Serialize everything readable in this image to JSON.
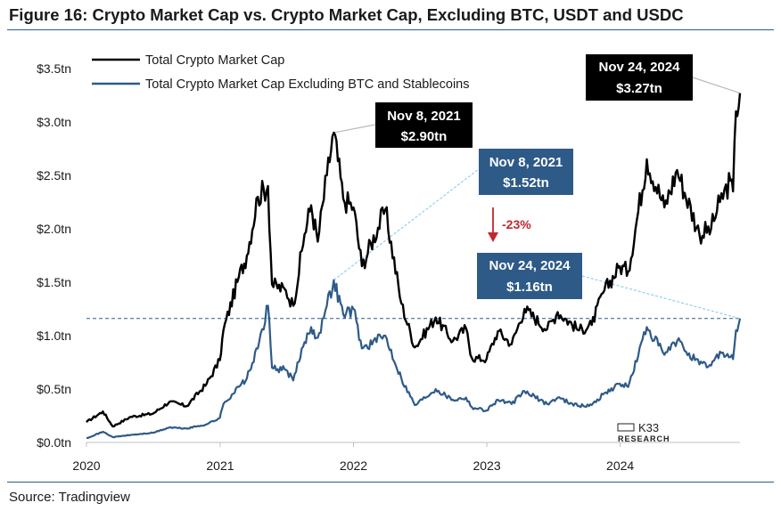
{
  "header": {
    "title": "Figure 16: Crypto Market Cap vs. Crypto Market Cap, Excluding BTC, USDT and USDC"
  },
  "footer": {
    "source": "Source: Tradingview"
  },
  "logo": {
    "name": "K33",
    "sub": "RESEARCH"
  },
  "colors": {
    "total": "#000000",
    "excl": "#2e5a88",
    "callout_dark": "#000000",
    "callout_blue": "#2e5a88",
    "arrow": "#c0282e",
    "leader_light": "#8fd0ec",
    "leader_grey": "#bbbbbb"
  },
  "annotations": {
    "peak_total": {
      "date": "Nov 8, 2021",
      "value": "$2.90tn"
    },
    "peak_excl": {
      "date": "Nov 8, 2021",
      "value": "$1.52tn"
    },
    "now_total": {
      "date": "Nov 24, 2024",
      "value": "$3.27tn"
    },
    "now_excl": {
      "date": "Nov 24, 2024",
      "value": "$1.16tn"
    },
    "change": "-23%"
  },
  "chart_data": {
    "type": "line",
    "title": "Figure 16: Crypto Market Cap vs. Crypto Market Cap, Excluding BTC, USDT and USDC",
    "xlabel": "",
    "ylabel": "",
    "x_ticks": [
      "2020",
      "2021",
      "2022",
      "2023",
      "2024"
    ],
    "y_ticks": [
      "$0.0tn",
      "$0.5tn",
      "$1.0tn",
      "$1.5tn",
      "$2.0tn",
      "$2.5tn",
      "$3.0tn",
      "$3.5tn"
    ],
    "ylim": [
      0,
      3.5
    ],
    "xlim": [
      "2020-01-01",
      "2024-11-24"
    ],
    "legend_position": "top-left",
    "reference_line": {
      "y": 1.16,
      "style": "dashed"
    },
    "series": [
      {
        "name": "Total Crypto Market Cap",
        "x": [
          "2020-01-01",
          "2020-02-15",
          "2020-03-13",
          "2020-05-01",
          "2020-07-01",
          "2020-08-15",
          "2020-10-01",
          "2020-11-25",
          "2020-12-31",
          "2021-01-10",
          "2021-02-21",
          "2021-03-15",
          "2021-04-14",
          "2021-05-12",
          "2021-05-23",
          "2021-06-30",
          "2021-07-20",
          "2021-08-20",
          "2021-09-07",
          "2021-09-25",
          "2021-10-20",
          "2021-11-08",
          "2021-12-04",
          "2022-01-01",
          "2022-01-24",
          "2022-03-29",
          "2022-05-12",
          "2022-06-18",
          "2022-08-14",
          "2022-09-30",
          "2022-11-05",
          "2022-11-21",
          "2022-12-31",
          "2023-01-31",
          "2023-03-10",
          "2023-04-14",
          "2023-06-15",
          "2023-07-14",
          "2023-09-11",
          "2023-10-15",
          "2023-11-15",
          "2023-12-31",
          "2024-01-23",
          "2024-03-14",
          "2024-05-01",
          "2024-06-05",
          "2024-08-05",
          "2024-09-06",
          "2024-09-30",
          "2024-10-29",
          "2024-11-05",
          "2024-11-13",
          "2024-11-24"
        ],
        "values": [
          0.19,
          0.29,
          0.15,
          0.24,
          0.27,
          0.38,
          0.34,
          0.55,
          0.77,
          1.05,
          1.55,
          1.75,
          2.3,
          2.4,
          1.48,
          1.42,
          1.28,
          1.95,
          2.22,
          1.88,
          2.5,
          2.9,
          2.28,
          2.2,
          1.65,
          2.18,
          1.3,
          0.89,
          1.17,
          0.95,
          1.07,
          0.79,
          0.78,
          1.04,
          0.92,
          1.25,
          1.06,
          1.22,
          1.05,
          1.1,
          1.4,
          1.65,
          1.6,
          2.65,
          2.2,
          2.55,
          1.95,
          2.0,
          2.25,
          2.45,
          2.35,
          3.1,
          3.27
        ]
      },
      {
        "name": "Total Crypto Market Cap Excluding BTC and Stablecoins",
        "x": [
          "2020-01-01",
          "2020-02-15",
          "2020-03-13",
          "2020-05-01",
          "2020-07-01",
          "2020-08-15",
          "2020-10-01",
          "2020-11-25",
          "2020-12-31",
          "2021-01-10",
          "2021-02-21",
          "2021-03-15",
          "2021-04-14",
          "2021-05-12",
          "2021-05-23",
          "2021-06-30",
          "2021-07-20",
          "2021-08-20",
          "2021-09-07",
          "2021-09-25",
          "2021-10-20",
          "2021-11-08",
          "2021-12-04",
          "2022-01-01",
          "2022-01-24",
          "2022-03-29",
          "2022-05-12",
          "2022-06-18",
          "2022-08-14",
          "2022-09-30",
          "2022-11-05",
          "2022-11-21",
          "2022-12-31",
          "2023-01-31",
          "2023-03-10",
          "2023-04-14",
          "2023-06-15",
          "2023-07-14",
          "2023-09-11",
          "2023-10-15",
          "2023-11-15",
          "2023-12-31",
          "2024-01-23",
          "2024-03-14",
          "2024-05-01",
          "2024-06-05",
          "2024-08-05",
          "2024-09-06",
          "2024-09-30",
          "2024-10-29",
          "2024-11-05",
          "2024-11-13",
          "2024-11-24"
        ],
        "values": [
          0.04,
          0.1,
          0.05,
          0.07,
          0.09,
          0.14,
          0.13,
          0.17,
          0.23,
          0.36,
          0.52,
          0.6,
          0.88,
          1.28,
          0.7,
          0.68,
          0.58,
          0.94,
          1.08,
          0.98,
          1.28,
          1.52,
          1.2,
          1.25,
          0.88,
          1.0,
          0.6,
          0.35,
          0.5,
          0.4,
          0.42,
          0.33,
          0.3,
          0.4,
          0.36,
          0.48,
          0.36,
          0.42,
          0.34,
          0.35,
          0.45,
          0.55,
          0.52,
          1.08,
          0.82,
          0.95,
          0.73,
          0.72,
          0.85,
          0.8,
          0.78,
          1.05,
          1.16
        ]
      }
    ]
  }
}
